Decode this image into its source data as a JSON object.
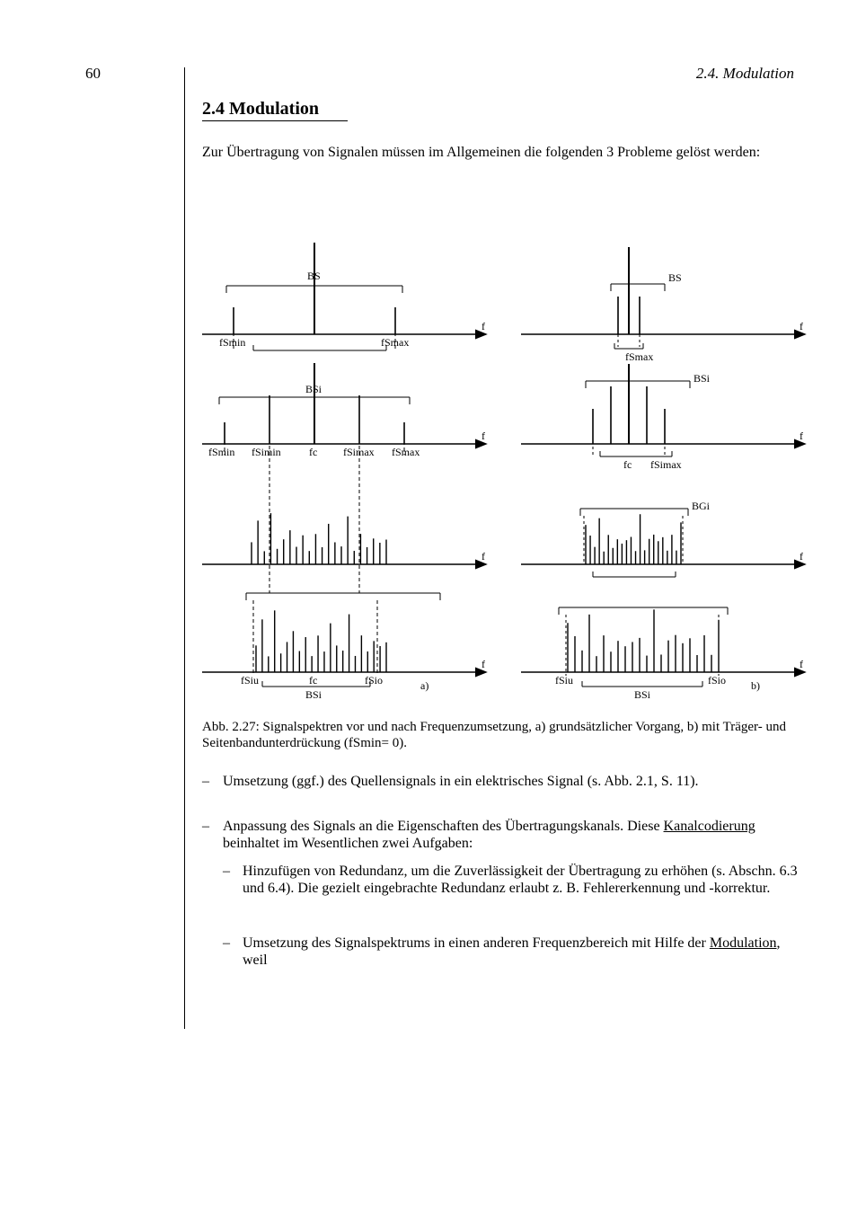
{
  "page_label": "60",
  "section_heading": "2.4. Modulation",
  "section_title": "2.4   Modulation",
  "intro": "Zur Übertragung von Signalen müssen im Allgemeinen die folgenden 3 Probleme gelöst werden:",
  "fig": {
    "caption": "Abb. 2.27:  Signalspektren vor und nach Frequenzumsetzung, a) grundsätzlicher Vorgang, b) mit Träger- und Seitenbandunterdrückung (fSmin= 0).",
    "left": {
      "row1": {
        "fs_min": "fSmin",
        "fs_max": "fSmax",
        "freq": "f",
        "bs": "BS"
      },
      "row2": {
        "fs_min": "fSmin",
        "fs_max": "fSmax",
        "fc": "fc",
        "fSimin": "fSimin",
        "fSimax": "fSimax",
        "freq": "f",
        "bsi": "BSi"
      },
      "row3": {
        "freq": "f"
      },
      "row4": {
        "fSiu": "fSiu",
        "fc": "fc",
        "fSio": "fSio",
        "a_label": "a)",
        "bsi": "BSi",
        "freq": "f"
      }
    },
    "right": {
      "row1": {
        "bs": "BS",
        "fs_max": "fSmax",
        "freq": "f"
      },
      "row2": {
        "bsi": "BSi",
        "fc": "fc",
        "fSimax": "fSimax",
        "freq": "f"
      },
      "row3": {
        "bgi": "BGi",
        "freq": "f"
      },
      "row4": {
        "fSiu": "fSiu",
        "fSio": "fSio",
        "b_label": "b)",
        "bsi": "BSi",
        "freq": "f"
      }
    }
  },
  "bullets": {
    "b1": "Umsetzung (ggf.) des Quellensignals in ein elektrisches Signal (s. Abb. 2.1, S. 11).",
    "b2_1": "Anpassung des Signals an die Eigenschaften des Übertragungskanals. Diese ",
    "b2_2_u": "Kanalcodierung",
    "b2_3": " beinhaltet im Wesentlichen zwei Aufgaben:",
    "b2a": "Hinzufügen von Redundanz, um die Zuverlässigkeit der Übertragung zu erhöhen (s. Abschn. 6.3 und 6.4). Die gezielt eingebrachte Redundanz erlaubt z. B. Fehlererkennung und -korrektur.",
    "b2b_1": "Umsetzung des Signalspektrums in einen anderen Frequenzbereich mit Hilfe der ",
    "b2b_2_u": "Modulation",
    "b2b_3": ", weil"
  },
  "colors": {
    "line": "#000000",
    "bg": "#ffffff"
  },
  "stroke": {
    "thin": 1,
    "med": 1.4
  }
}
